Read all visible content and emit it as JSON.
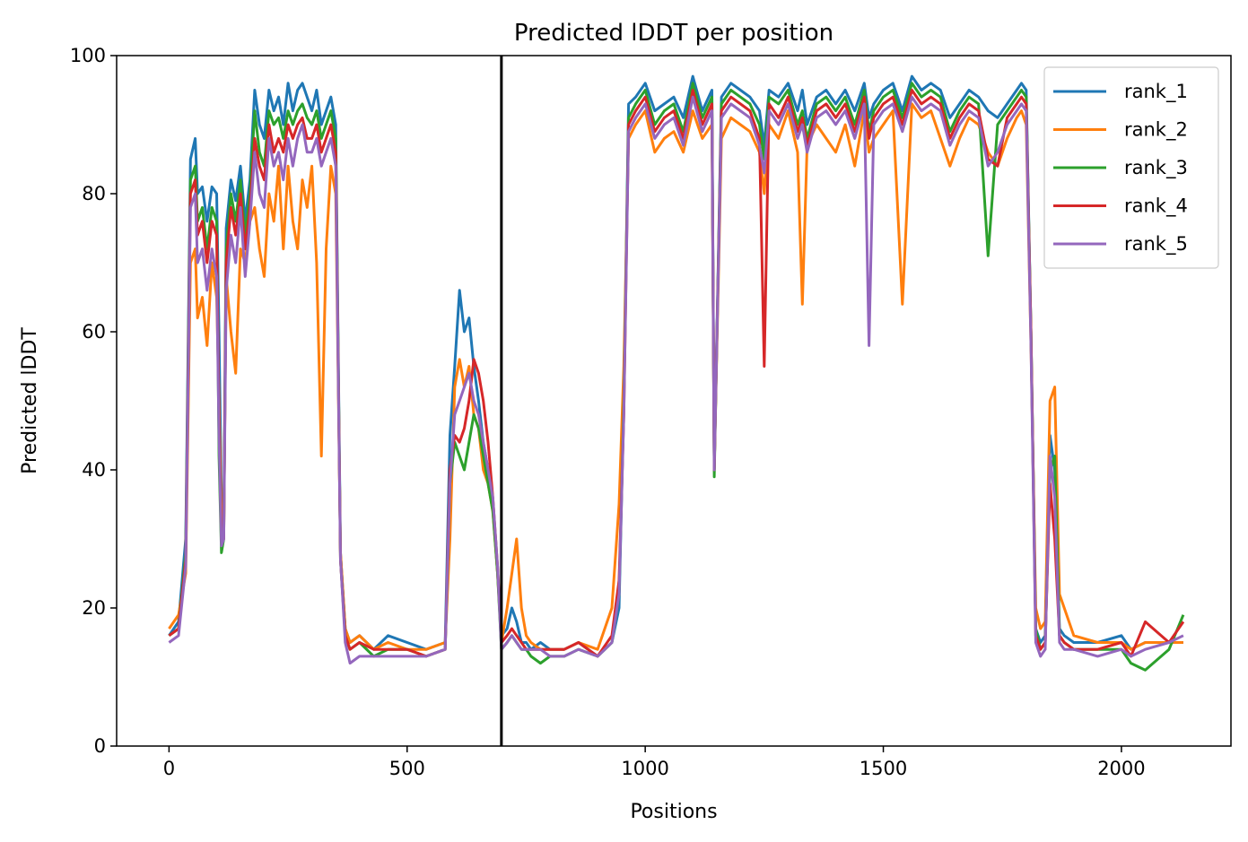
{
  "chart_data": {
    "type": "line",
    "title": "Predicted lDDT per position",
    "xlabel": "Positions",
    "ylabel": "Predicted lDDT",
    "xlim": [
      -110,
      2230
    ],
    "ylim": [
      0,
      100
    ],
    "xticks": [
      0,
      500,
      1000,
      1500,
      2000
    ],
    "yticks": [
      0,
      20,
      40,
      60,
      80,
      100
    ],
    "grid": false,
    "legend_position": "top-right",
    "vline_x": 698,
    "x": [
      0,
      20,
      35,
      45,
      55,
      60,
      70,
      80,
      90,
      100,
      105,
      110,
      115,
      120,
      130,
      140,
      150,
      160,
      170,
      180,
      190,
      200,
      210,
      220,
      230,
      240,
      250,
      260,
      270,
      280,
      290,
      300,
      310,
      320,
      330,
      340,
      350,
      360,
      370,
      380,
      400,
      430,
      460,
      500,
      540,
      580,
      590,
      600,
      610,
      620,
      630,
      640,
      650,
      660,
      670,
      680,
      690,
      698,
      710,
      720,
      730,
      740,
      750,
      760,
      780,
      800,
      830,
      860,
      900,
      930,
      945,
      955,
      965,
      980,
      1000,
      1020,
      1040,
      1060,
      1080,
      1100,
      1120,
      1140,
      1145,
      1160,
      1180,
      1200,
      1220,
      1240,
      1250,
      1260,
      1280,
      1300,
      1320,
      1330,
      1340,
      1360,
      1380,
      1400,
      1420,
      1440,
      1460,
      1470,
      1480,
      1500,
      1520,
      1540,
      1560,
      1580,
      1600,
      1620,
      1640,
      1660,
      1680,
      1700,
      1720,
      1740,
      1760,
      1780,
      1790,
      1800,
      1810,
      1820,
      1830,
      1840,
      1850,
      1860,
      1870,
      1880,
      1900,
      1950,
      2000,
      2020,
      2050,
      2100,
      2130
    ],
    "series": [
      {
        "name": "rank_1",
        "color": "#1f77b4",
        "values": [
          16,
          18,
          30,
          85,
          88,
          80,
          81,
          76,
          81,
          80,
          60,
          35,
          32,
          75,
          82,
          79,
          84,
          76,
          82,
          95,
          90,
          88,
          95,
          92,
          94,
          90,
          96,
          92,
          95,
          96,
          94,
          92,
          95,
          90,
          92,
          94,
          90,
          28,
          17,
          15,
          16,
          14,
          16,
          15,
          14,
          15,
          45,
          55,
          66,
          60,
          62,
          55,
          50,
          44,
          40,
          35,
          25,
          16,
          17,
          20,
          18,
          15,
          15,
          14,
          15,
          14,
          14,
          15,
          13,
          15,
          20,
          50,
          93,
          94,
          96,
          92,
          93,
          94,
          91,
          97,
          92,
          95,
          40,
          94,
          96,
          95,
          94,
          92,
          87,
          95,
          94,
          96,
          92,
          95,
          90,
          94,
          95,
          93,
          95,
          92,
          96,
          91,
          93,
          95,
          96,
          92,
          97,
          95,
          96,
          95,
          91,
          93,
          95,
          94,
          92,
          91,
          93,
          95,
          96,
          95,
          60,
          17,
          15,
          16,
          45,
          40,
          17,
          16,
          15,
          15,
          16,
          14,
          15,
          15,
          15
        ]
      },
      {
        "name": "rank_2",
        "color": "#ff7f0e",
        "values": [
          17,
          19,
          25,
          70,
          72,
          62,
          65,
          58,
          70,
          65,
          50,
          33,
          31,
          68,
          60,
          54,
          72,
          70,
          76,
          78,
          72,
          68,
          80,
          76,
          84,
          72,
          84,
          76,
          72,
          82,
          78,
          84,
          70,
          42,
          72,
          84,
          80,
          28,
          17,
          15,
          16,
          14,
          15,
          14,
          14,
          15,
          30,
          52,
          56,
          52,
          55,
          48,
          46,
          40,
          38,
          34,
          25,
          15,
          20,
          25,
          30,
          20,
          16,
          15,
          14,
          14,
          14,
          15,
          14,
          20,
          35,
          55,
          88,
          90,
          92,
          86,
          88,
          89,
          86,
          92,
          88,
          90,
          40,
          88,
          91,
          90,
          89,
          86,
          80,
          90,
          88,
          92,
          86,
          64,
          87,
          90,
          88,
          86,
          90,
          84,
          92,
          86,
          88,
          90,
          92,
          64,
          93,
          91,
          92,
          88,
          84,
          88,
          91,
          90,
          86,
          84,
          88,
          91,
          92,
          90,
          58,
          20,
          17,
          18,
          50,
          52,
          22,
          20,
          16,
          15,
          15,
          14,
          15,
          15,
          15
        ]
      },
      {
        "name": "rank_3",
        "color": "#2ca02c",
        "values": [
          16,
          17,
          28,
          82,
          84,
          76,
          78,
          72,
          78,
          76,
          42,
          28,
          30,
          72,
          80,
          76,
          82,
          74,
          80,
          92,
          86,
          84,
          92,
          90,
          91,
          88,
          92,
          90,
          92,
          93,
          91,
          90,
          92,
          88,
          90,
          92,
          88,
          27,
          16,
          14,
          15,
          13,
          14,
          14,
          13,
          14,
          38,
          44,
          42,
          40,
          44,
          48,
          46,
          42,
          38,
          34,
          25,
          14,
          15,
          16,
          15,
          14,
          14,
          13,
          12,
          13,
          13,
          14,
          13,
          15,
          22,
          50,
          91,
          93,
          95,
          90,
          92,
          93,
          89,
          96,
          91,
          94,
          39,
          93,
          95,
          94,
          93,
          90,
          85,
          94,
          93,
          95,
          90,
          92,
          88,
          93,
          94,
          92,
          94,
          90,
          95,
          89,
          92,
          94,
          95,
          91,
          96,
          94,
          95,
          94,
          89,
          92,
          94,
          93,
          71,
          90,
          92,
          94,
          95,
          94,
          60,
          17,
          14,
          15,
          40,
          42,
          16,
          15,
          14,
          14,
          14,
          12,
          11,
          14,
          19
        ]
      },
      {
        "name": "rank_4",
        "color": "#d62728",
        "values": [
          16,
          17,
          27,
          80,
          82,
          74,
          76,
          70,
          76,
          74,
          48,
          30,
          30,
          70,
          78,
          74,
          80,
          72,
          78,
          88,
          84,
          82,
          90,
          86,
          88,
          86,
          90,
          88,
          90,
          91,
          88,
          88,
          90,
          86,
          88,
          90,
          86,
          27,
          16,
          14,
          15,
          14,
          14,
          14,
          13,
          14,
          40,
          45,
          44,
          46,
          50,
          56,
          54,
          50,
          44,
          36,
          26,
          15,
          16,
          17,
          16,
          15,
          14,
          14,
          14,
          14,
          14,
          15,
          13,
          16,
          24,
          48,
          90,
          92,
          94,
          89,
          91,
          92,
          88,
          95,
          90,
          93,
          40,
          92,
          94,
          93,
          92,
          88,
          55,
          93,
          91,
          94,
          89,
          91,
          87,
          92,
          93,
          91,
          93,
          89,
          94,
          88,
          91,
          93,
          94,
          90,
          95,
          93,
          94,
          93,
          88,
          91,
          93,
          92,
          85,
          84,
          91,
          93,
          94,
          93,
          60,
          16,
          14,
          15,
          38,
          30,
          16,
          15,
          14,
          14,
          15,
          13,
          18,
          15,
          18
        ]
      },
      {
        "name": "rank_5",
        "color": "#9467bd",
        "values": [
          15,
          16,
          26,
          78,
          80,
          70,
          72,
          66,
          72,
          68,
          45,
          29,
          30,
          66,
          74,
          70,
          78,
          68,
          76,
          86,
          80,
          78,
          88,
          84,
          86,
          82,
          88,
          84,
          88,
          90,
          86,
          86,
          88,
          84,
          86,
          88,
          84,
          27,
          15,
          12,
          13,
          13,
          13,
          13,
          13,
          14,
          38,
          48,
          50,
          52,
          54,
          50,
          48,
          44,
          40,
          36,
          26,
          14,
          15,
          16,
          15,
          14,
          14,
          14,
          14,
          13,
          13,
          14,
          13,
          15,
          22,
          48,
          89,
          91,
          93,
          88,
          90,
          91,
          87,
          94,
          89,
          92,
          40,
          91,
          93,
          92,
          91,
          87,
          83,
          92,
          90,
          93,
          88,
          90,
          86,
          91,
          92,
          90,
          92,
          88,
          93,
          58,
          90,
          92,
          93,
          89,
          94,
          92,
          93,
          92,
          87,
          90,
          92,
          91,
          84,
          86,
          90,
          92,
          93,
          92,
          58,
          15,
          13,
          14,
          42,
          36,
          15,
          14,
          14,
          13,
          14,
          13,
          14,
          15,
          16
        ]
      }
    ]
  }
}
